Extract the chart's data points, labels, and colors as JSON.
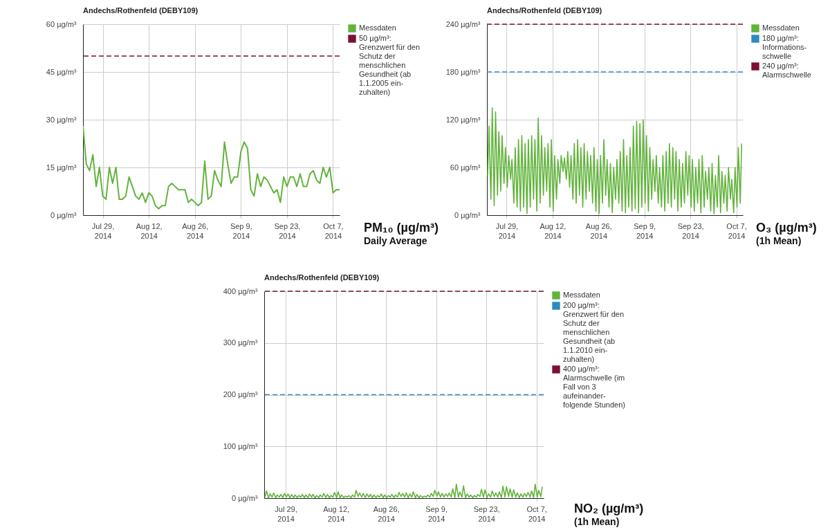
{
  "chart_data": [
    {
      "type": "line",
      "title": "Andechs/Rothenfeld (DEBY109)",
      "legend": "right",
      "grid": true,
      "xlim": [
        "2014-07-23",
        "2014-10-09"
      ],
      "xticks": [
        {
          "value": "2014-07-29",
          "label": "Jul 29, 2014"
        },
        {
          "value": "2014-08-12",
          "label": "Aug 12, 2014"
        },
        {
          "value": "2014-08-26",
          "label": "Aug 26, 2014"
        },
        {
          "value": "2014-09-09",
          "label": "Sep 9, 2014"
        },
        {
          "value": "2014-09-23",
          "label": "Sep 23, 2014"
        },
        {
          "value": "2014-10-07",
          "label": "Oct 7, 2014"
        }
      ],
      "ylim": [
        0,
        60
      ],
      "yticks": [
        {
          "value": 0,
          "label": "0 µg/m³"
        },
        {
          "value": 15,
          "label": "15 µg/m³"
        },
        {
          "value": 30,
          "label": "30 µg/m³"
        },
        {
          "value": 45,
          "label": "45 µg/m³"
        },
        {
          "value": 60,
          "label": "60 µg/m³"
        }
      ],
      "series": [
        {
          "name": "Messdaten",
          "color": "#62b33c",
          "x": [
            "2014-07-23",
            "2014-07-24",
            "2014-07-25",
            "2014-07-26",
            "2014-07-27",
            "2014-07-28",
            "2014-07-29",
            "2014-07-30",
            "2014-07-31",
            "2014-08-01",
            "2014-08-02",
            "2014-08-03",
            "2014-08-04",
            "2014-08-05",
            "2014-08-06",
            "2014-08-07",
            "2014-08-08",
            "2014-08-09",
            "2014-08-10",
            "2014-08-11",
            "2014-08-12",
            "2014-08-13",
            "2014-08-14",
            "2014-08-15",
            "2014-08-16",
            "2014-08-17",
            "2014-08-18",
            "2014-08-19",
            "2014-08-20",
            "2014-08-21",
            "2014-08-22",
            "2014-08-23",
            "2014-08-24",
            "2014-08-25",
            "2014-08-26",
            "2014-08-27",
            "2014-08-28",
            "2014-08-29",
            "2014-08-30",
            "2014-08-31",
            "2014-09-01",
            "2014-09-02",
            "2014-09-03",
            "2014-09-04",
            "2014-09-05",
            "2014-09-06",
            "2014-09-07",
            "2014-09-08",
            "2014-09-09",
            "2014-09-10",
            "2014-09-11",
            "2014-09-12",
            "2014-09-13",
            "2014-09-14",
            "2014-09-15",
            "2014-09-16",
            "2014-09-17",
            "2014-09-18",
            "2014-09-19",
            "2014-09-20",
            "2014-09-21",
            "2014-09-22",
            "2014-09-23",
            "2014-09-24",
            "2014-09-25",
            "2014-09-26",
            "2014-09-27",
            "2014-09-28",
            "2014-09-29",
            "2014-09-30",
            "2014-10-01",
            "2014-10-02",
            "2014-10-03",
            "2014-10-04",
            "2014-10-05",
            "2014-10-06",
            "2014-10-07",
            "2014-10-08",
            "2014-10-09"
          ],
          "values": [
            28,
            16,
            14,
            19,
            9,
            15,
            6,
            5,
            15,
            10,
            15,
            5,
            5,
            6,
            12,
            9,
            6,
            5,
            7,
            4,
            7,
            6,
            3,
            2,
            3,
            3,
            9,
            10,
            9,
            8,
            8,
            8,
            4,
            5,
            4,
            3,
            4,
            17,
            5,
            6,
            14,
            11,
            9,
            23,
            16,
            10,
            12,
            12,
            20,
            23,
            21,
            8,
            6,
            13,
            9,
            12,
            11,
            9,
            7,
            8,
            4,
            12,
            9,
            12,
            12,
            9,
            13,
            9,
            9,
            13,
            14,
            11,
            10,
            15,
            12,
            15,
            7,
            8,
            8
          ]
        }
      ],
      "ref_lines": [
        {
          "axis": "y",
          "value": 50,
          "label": "50 µg/m³: Grenzwert für den Schutz der menschlichen Gesundheit (ab 1.1.2005 ein-zuhalten)",
          "color": "#7a1038",
          "line_style": "dashed"
        }
      ],
      "annotations": [
        "PM₁₀ (µg/m³)",
        "Daily Average"
      ]
    },
    {
      "type": "line",
      "title": "Andechs/Rothenfeld (DEBY109)",
      "legend": "right",
      "grid": true,
      "xlim": [
        "2014-07-23",
        "2014-10-09"
      ],
      "xticks": [
        {
          "value": "2014-07-29",
          "label": "Jul 29, 2014"
        },
        {
          "value": "2014-08-12",
          "label": "Aug 12, 2014"
        },
        {
          "value": "2014-08-26",
          "label": "Aug 26, 2014"
        },
        {
          "value": "2014-09-09",
          "label": "Sep 9, 2014"
        },
        {
          "value": "2014-09-23",
          "label": "Sep 23, 2014"
        },
        {
          "value": "2014-10-07",
          "label": "Oct 7, 2014"
        }
      ],
      "ylim": [
        0,
        240
      ],
      "yticks": [
        {
          "value": 0,
          "label": "0 µg/m³"
        },
        {
          "value": 60,
          "label": "60 µg/m³"
        },
        {
          "value": 120,
          "label": "120 µg/m³"
        },
        {
          "value": 180,
          "label": "180 µg/m³"
        },
        {
          "value": 240,
          "label": "240 µg/m³"
        }
      ],
      "series": [
        {
          "name": "Messdaten",
          "color": "#62b33c",
          "x": [
            "2014-07-23T05:00",
            "2014-07-23T15:00",
            "2014-07-24T05:00",
            "2014-07-24T15:00",
            "2014-07-25T05:00",
            "2014-07-25T15:00",
            "2014-07-26T05:00",
            "2014-07-26T15:00",
            "2014-07-27T05:00",
            "2014-07-27T15:00",
            "2014-07-28T05:00",
            "2014-07-28T15:00",
            "2014-07-29T05:00",
            "2014-07-29T15:00",
            "2014-07-30T05:00",
            "2014-07-30T15:00",
            "2014-07-31T05:00",
            "2014-07-31T15:00",
            "2014-08-01T05:00",
            "2014-08-01T15:00",
            "2014-08-02T05:00",
            "2014-08-02T15:00",
            "2014-08-03T05:00",
            "2014-08-03T15:00",
            "2014-08-04T05:00",
            "2014-08-04T15:00",
            "2014-08-05T05:00",
            "2014-08-05T15:00",
            "2014-08-06T05:00",
            "2014-08-06T15:00",
            "2014-08-07T05:00",
            "2014-08-07T15:00",
            "2014-08-08T05:00",
            "2014-08-08T15:00",
            "2014-08-09T05:00",
            "2014-08-09T15:00",
            "2014-08-10T05:00",
            "2014-08-10T15:00",
            "2014-08-11T05:00",
            "2014-08-11T15:00",
            "2014-08-12T05:00",
            "2014-08-12T15:00",
            "2014-08-13T05:00",
            "2014-08-13T15:00",
            "2014-08-14T05:00",
            "2014-08-14T15:00",
            "2014-08-15T05:00",
            "2014-08-15T15:00",
            "2014-08-16T05:00",
            "2014-08-16T15:00",
            "2014-08-17T05:00",
            "2014-08-17T15:00",
            "2014-08-18T05:00",
            "2014-08-18T15:00",
            "2014-08-19T05:00",
            "2014-08-19T15:00",
            "2014-08-20T05:00",
            "2014-08-20T15:00",
            "2014-08-21T05:00",
            "2014-08-21T15:00",
            "2014-08-22T05:00",
            "2014-08-22T15:00",
            "2014-08-23T05:00",
            "2014-08-23T15:00",
            "2014-08-24T05:00",
            "2014-08-24T15:00",
            "2014-08-25T05:00",
            "2014-08-25T15:00",
            "2014-08-26T05:00",
            "2014-08-26T15:00",
            "2014-08-27T05:00",
            "2014-08-27T15:00",
            "2014-08-28T05:00",
            "2014-08-28T15:00",
            "2014-08-29T05:00",
            "2014-08-29T15:00",
            "2014-08-30T05:00",
            "2014-08-30T15:00",
            "2014-08-31T05:00",
            "2014-08-31T15:00",
            "2014-09-01T05:00",
            "2014-09-01T15:00",
            "2014-09-02T05:00",
            "2014-09-02T15:00",
            "2014-09-03T05:00",
            "2014-09-03T15:00",
            "2014-09-04T05:00",
            "2014-09-04T15:00",
            "2014-09-05T05:00",
            "2014-09-05T15:00",
            "2014-09-06T05:00",
            "2014-09-06T15:00",
            "2014-09-07T05:00",
            "2014-09-07T15:00",
            "2014-09-08T05:00",
            "2014-09-08T15:00",
            "2014-09-09T05:00",
            "2014-09-09T15:00",
            "2014-09-10T05:00",
            "2014-09-10T15:00",
            "2014-09-11T05:00",
            "2014-09-11T15:00",
            "2014-09-12T05:00",
            "2014-09-12T15:00",
            "2014-09-13T05:00",
            "2014-09-13T15:00",
            "2014-09-14T05:00",
            "2014-09-14T15:00",
            "2014-09-15T05:00",
            "2014-09-15T15:00",
            "2014-09-16T05:00",
            "2014-09-16T15:00",
            "2014-09-17T05:00",
            "2014-09-17T15:00",
            "2014-09-18T05:00",
            "2014-09-18T15:00",
            "2014-09-19T05:00",
            "2014-09-19T15:00",
            "2014-09-20T05:00",
            "2014-09-20T15:00",
            "2014-09-21T05:00",
            "2014-09-21T15:00",
            "2014-09-22T05:00",
            "2014-09-22T15:00",
            "2014-09-23T05:00",
            "2014-09-23T15:00",
            "2014-09-24T05:00",
            "2014-09-24T15:00",
            "2014-09-25T05:00",
            "2014-09-25T15:00",
            "2014-09-26T05:00",
            "2014-09-26T15:00",
            "2014-09-27T05:00",
            "2014-09-27T15:00",
            "2014-09-28T05:00",
            "2014-09-28T15:00",
            "2014-09-29T05:00",
            "2014-09-29T15:00",
            "2014-09-30T05:00",
            "2014-09-30T15:00",
            "2014-10-01T05:00",
            "2014-10-01T15:00",
            "2014-10-02T05:00",
            "2014-10-02T15:00",
            "2014-10-03T05:00",
            "2014-10-03T15:00",
            "2014-10-04T05:00",
            "2014-10-04T15:00",
            "2014-10-05T05:00",
            "2014-10-05T15:00",
            "2014-10-06T05:00",
            "2014-10-06T15:00",
            "2014-10-07T05:00",
            "2014-10-07T15:00",
            "2014-10-08T05:00",
            "2014-10-08T15:00"
          ],
          "values": [
            50,
            112,
            20,
            135,
            12,
            130,
            25,
            105,
            30,
            100,
            40,
            85,
            35,
            75,
            45,
            70,
            15,
            85,
            10,
            95,
            5,
            100,
            10,
            90,
            2,
            95,
            10,
            100,
            20,
            95,
            5,
            122,
            15,
            100,
            25,
            85,
            30,
            90,
            10,
            95,
            5,
            75,
            20,
            70,
            40,
            75,
            55,
            72,
            45,
            80,
            35,
            75,
            20,
            90,
            15,
            95,
            25,
            85,
            10,
            90,
            20,
            80,
            30,
            75,
            15,
            85,
            5,
            70,
            2,
            75,
            15,
            95,
            25,
            70,
            10,
            65,
            3,
            60,
            20,
            70,
            15,
            80,
            5,
            95,
            3,
            75,
            10,
            85,
            5,
            112,
            8,
            118,
            3,
            115,
            10,
            120,
            15,
            100,
            5,
            85,
            20,
            70,
            30,
            75,
            15,
            60,
            10,
            75,
            5,
            80,
            15,
            90,
            10,
            85,
            20,
            80,
            5,
            70,
            10,
            65,
            15,
            80,
            25,
            75,
            10,
            70,
            5,
            60,
            15,
            70,
            3,
            75,
            10,
            55,
            20,
            60,
            5,
            65,
            2,
            50,
            10,
            75,
            3,
            55,
            15,
            50,
            5,
            60,
            20,
            45,
            3,
            60,
            10,
            85,
            15,
            90
          ]
        }
      ],
      "ref_lines": [
        {
          "axis": "y",
          "value": 180,
          "label": "180 µg/m³: Informations-schwelle",
          "color": "#2e8bc0",
          "line_style": "dashed"
        },
        {
          "axis": "y",
          "value": 240,
          "label": "240 µg/m³: Alarmschwelle",
          "color": "#7a1038",
          "line_style": "dashed"
        }
      ],
      "annotations": [
        "O₃ (µg/m³)",
        "(1h Mean)"
      ]
    },
    {
      "type": "line",
      "title": "Andechs/Rothenfeld (DEBY109)",
      "legend": "right",
      "grid": true,
      "xlim": [
        "2014-07-23",
        "2014-10-09"
      ],
      "xticks": [
        {
          "value": "2014-07-29",
          "label": "Jul 29, 2014"
        },
        {
          "value": "2014-08-12",
          "label": "Aug 12, 2014"
        },
        {
          "value": "2014-08-26",
          "label": "Aug 26, 2014"
        },
        {
          "value": "2014-09-09",
          "label": "Sep 9, 2014"
        },
        {
          "value": "2014-09-23",
          "label": "Sep 23, 2014"
        },
        {
          "value": "2014-10-07",
          "label": "Oct 7, 2014"
        }
      ],
      "ylim": [
        0,
        400
      ],
      "yticks": [
        {
          "value": 0,
          "label": "0 µg/m³"
        },
        {
          "value": 100,
          "label": "100 µg/m³"
        },
        {
          "value": 200,
          "label": "200 µg/m³"
        },
        {
          "value": 300,
          "label": "300 µg/m³"
        },
        {
          "value": 400,
          "label": "400 µg/m³"
        }
      ],
      "series": [
        {
          "name": "Messdaten",
          "color": "#62b33c",
          "x": [
            "2014-07-23T05:00",
            "2014-07-23T15:00",
            "2014-07-24T05:00",
            "2014-07-24T15:00",
            "2014-07-25T05:00",
            "2014-07-25T15:00",
            "2014-07-26T05:00",
            "2014-07-26T15:00",
            "2014-07-27T05:00",
            "2014-07-27T15:00",
            "2014-07-28T05:00",
            "2014-07-28T15:00",
            "2014-07-29T05:00",
            "2014-07-29T15:00",
            "2014-07-30T05:00",
            "2014-07-30T15:00",
            "2014-07-31T05:00",
            "2014-07-31T15:00",
            "2014-08-01T05:00",
            "2014-08-01T15:00",
            "2014-08-02T05:00",
            "2014-08-02T15:00",
            "2014-08-03T05:00",
            "2014-08-03T15:00",
            "2014-08-04T05:00",
            "2014-08-04T15:00",
            "2014-08-05T05:00",
            "2014-08-05T15:00",
            "2014-08-06T05:00",
            "2014-08-06T15:00",
            "2014-08-07T05:00",
            "2014-08-07T15:00",
            "2014-08-08T05:00",
            "2014-08-08T15:00",
            "2014-08-09T05:00",
            "2014-08-09T15:00",
            "2014-08-10T05:00",
            "2014-08-10T15:00",
            "2014-08-11T05:00",
            "2014-08-11T15:00",
            "2014-08-12T05:00",
            "2014-08-12T15:00",
            "2014-08-13T05:00",
            "2014-08-13T15:00",
            "2014-08-14T05:00",
            "2014-08-14T15:00",
            "2014-08-15T05:00",
            "2014-08-15T15:00",
            "2014-08-16T05:00",
            "2014-08-16T15:00",
            "2014-08-17T05:00",
            "2014-08-17T15:00",
            "2014-08-18T05:00",
            "2014-08-18T15:00",
            "2014-08-19T05:00",
            "2014-08-19T15:00",
            "2014-08-20T05:00",
            "2014-08-20T15:00",
            "2014-08-21T05:00",
            "2014-08-21T15:00",
            "2014-08-22T05:00",
            "2014-08-22T15:00",
            "2014-08-23T05:00",
            "2014-08-23T15:00",
            "2014-08-24T05:00",
            "2014-08-24T15:00",
            "2014-08-25T05:00",
            "2014-08-25T15:00",
            "2014-08-26T05:00",
            "2014-08-26T15:00",
            "2014-08-27T05:00",
            "2014-08-27T15:00",
            "2014-08-28T05:00",
            "2014-08-28T15:00",
            "2014-08-29T05:00",
            "2014-08-29T15:00",
            "2014-08-30T05:00",
            "2014-08-30T15:00",
            "2014-08-31T05:00",
            "2014-08-31T15:00",
            "2014-09-01T05:00",
            "2014-09-01T15:00",
            "2014-09-02T05:00",
            "2014-09-02T15:00",
            "2014-09-03T05:00",
            "2014-09-03T15:00",
            "2014-09-04T05:00",
            "2014-09-04T15:00",
            "2014-09-05T05:00",
            "2014-09-05T15:00",
            "2014-09-06T05:00",
            "2014-09-06T15:00",
            "2014-09-07T05:00",
            "2014-09-07T15:00",
            "2014-09-08T05:00",
            "2014-09-08T15:00",
            "2014-09-09T05:00",
            "2014-09-09T15:00",
            "2014-09-10T05:00",
            "2014-09-10T15:00",
            "2014-09-11T05:00",
            "2014-09-11T15:00",
            "2014-09-12T05:00",
            "2014-09-12T15:00",
            "2014-09-13T05:00",
            "2014-09-13T15:00",
            "2014-09-14T05:00",
            "2014-09-14T15:00",
            "2014-09-15T05:00",
            "2014-09-15T15:00",
            "2014-09-16T05:00",
            "2014-09-16T15:00",
            "2014-09-17T05:00",
            "2014-09-17T15:00",
            "2014-09-18T05:00",
            "2014-09-18T15:00",
            "2014-09-19T05:00",
            "2014-09-19T15:00",
            "2014-09-20T05:00",
            "2014-09-20T15:00",
            "2014-09-21T05:00",
            "2014-09-21T15:00",
            "2014-09-22T05:00",
            "2014-09-22T15:00",
            "2014-09-23T05:00",
            "2014-09-23T15:00",
            "2014-09-24T05:00",
            "2014-09-24T15:00",
            "2014-09-25T05:00",
            "2014-09-25T15:00",
            "2014-09-26T05:00",
            "2014-09-26T15:00",
            "2014-09-27T05:00",
            "2014-09-27T15:00",
            "2014-09-28T05:00",
            "2014-09-28T15:00",
            "2014-09-29T05:00",
            "2014-09-29T15:00",
            "2014-09-30T05:00",
            "2014-09-30T15:00",
            "2014-10-01T05:00",
            "2014-10-01T15:00",
            "2014-10-02T05:00",
            "2014-10-02T15:00",
            "2014-10-03T05:00",
            "2014-10-03T15:00",
            "2014-10-04T05:00",
            "2014-10-04T15:00",
            "2014-10-05T05:00",
            "2014-10-05T15:00",
            "2014-10-06T05:00",
            "2014-10-06T15:00",
            "2014-10-07T05:00",
            "2014-10-07T15:00",
            "2014-10-08T05:00",
            "2014-10-08T15:00"
          ],
          "values": [
            2,
            14,
            1,
            8,
            2,
            10,
            1,
            6,
            2,
            7,
            1,
            9,
            2,
            8,
            1,
            7,
            1,
            6,
            1,
            5,
            2,
            7,
            1,
            6,
            1,
            8,
            2,
            7,
            1,
            5,
            1,
            6,
            2,
            9,
            1,
            7,
            1,
            5,
            2,
            11,
            1,
            12,
            1,
            6,
            1,
            4,
            2,
            5,
            1,
            6,
            2,
            15,
            3,
            10,
            2,
            9,
            1,
            8,
            2,
            7,
            1,
            6,
            1,
            5,
            2,
            8,
            1,
            6,
            1,
            5,
            2,
            7,
            1,
            6,
            2,
            11,
            3,
            9,
            2,
            10,
            1,
            8,
            2,
            12,
            1,
            7,
            1,
            5,
            1,
            4,
            2,
            6,
            2,
            9,
            3,
            15,
            4,
            12,
            2,
            9,
            2,
            8,
            3,
            10,
            2,
            18,
            1,
            27,
            2,
            12,
            2,
            24,
            1,
            8,
            2,
            6,
            1,
            5,
            2,
            7,
            3,
            17,
            2,
            16,
            1,
            8,
            2,
            14,
            3,
            10,
            2,
            12,
            1,
            23,
            2,
            22,
            3,
            18,
            2,
            16,
            2,
            10,
            1,
            8,
            2,
            9,
            3,
            11,
            2,
            14,
            1,
            27,
            2,
            15,
            3,
            22
          ]
        }
      ],
      "ref_lines": [
        {
          "axis": "y",
          "value": 200,
          "label": "200 µg/m³: Grenzwert für den Schutz der menschlichen Gesundheit (ab 1.1.2010 ein-zuhalten)",
          "color": "#2e8bc0",
          "line_style": "dashed"
        },
        {
          "axis": "y",
          "value": 400,
          "label": "400 µg/m³: Alarmschwelle (im Fall von 3 aufeinander-folgende Stunden)",
          "color": "#7a1038",
          "line_style": "dashed"
        }
      ],
      "annotations": [
        "NO₂ (µg/m³)",
        "(1h Mean)"
      ]
    }
  ]
}
